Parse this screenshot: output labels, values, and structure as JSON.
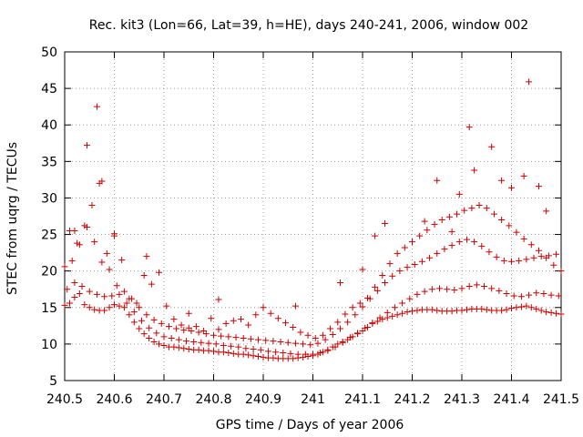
{
  "chart_data": {
    "type": "scatter",
    "title": "Rec. kit3 (Lon=66, Lat=39, h=HE), days 240-241, 2006, window 002",
    "xlabel": "GPS time / Days of year 2006",
    "ylabel": "STEC from uqrg / TECUs",
    "xlim": [
      240.5,
      241.5
    ],
    "ylim": [
      5,
      50
    ],
    "xticks": [
      240.5,
      240.6,
      240.7,
      240.8,
      240.9,
      241,
      241.1,
      241.2,
      241.3,
      241.4,
      241.5
    ],
    "xtick_labels": [
      "240.5",
      "240.6",
      "240.7",
      "240.8",
      "240.9",
      "241",
      "241.1",
      "241.2",
      "241.3",
      "241.4",
      "241.5"
    ],
    "yticks": [
      5,
      10,
      15,
      20,
      25,
      30,
      35,
      40,
      45,
      50
    ],
    "ytick_labels": [
      "5",
      "10",
      "15",
      "20",
      "25",
      "30",
      "35",
      "40",
      "45",
      "50"
    ],
    "grid": true,
    "marker": "+",
    "color": "#cc0000",
    "series": [
      {
        "x": [
          240.5,
          240.51,
          240.52,
          240.53,
          240.54,
          240.55,
          240.56,
          240.57,
          240.58,
          240.59,
          240.6,
          240.61,
          240.62,
          240.63,
          240.64,
          240.65,
          240.66,
          240.67,
          240.68,
          240.69,
          240.7,
          240.71,
          240.72,
          240.73,
          240.74,
          240.75,
          240.76,
          240.77,
          240.78,
          240.79,
          240.8,
          240.81,
          240.82,
          240.83,
          240.84,
          240.85,
          240.86,
          240.87,
          240.88,
          240.89,
          240.9,
          240.91,
          240.92,
          240.93,
          240.94,
          240.95,
          240.96,
          240.97,
          240.98,
          240.99,
          241.0,
          241.01,
          241.02,
          241.03,
          241.04,
          241.05,
          241.06,
          241.07,
          241.08,
          241.09,
          241.1,
          241.11,
          241.12,
          241.13,
          241.14,
          241.15,
          241.16,
          241.17,
          241.18,
          241.19,
          241.2,
          241.21,
          241.22,
          241.23,
          241.24,
          241.25,
          241.26,
          241.27,
          241.28,
          241.29,
          241.3,
          241.31,
          241.32,
          241.33,
          241.34,
          241.35,
          241.36,
          241.37,
          241.38,
          241.39,
          241.4,
          241.41,
          241.42,
          241.43,
          241.44,
          241.45,
          241.46,
          241.47,
          241.48,
          241.49,
          241.5
        ],
        "y": [
          15.3,
          15.6,
          16.4,
          16.9,
          15.4,
          15.0,
          14.7,
          14.6,
          14.6,
          15.0,
          15.4,
          15.2,
          15.0,
          14.0,
          13.0,
          12.1,
          11.4,
          10.8,
          10.3,
          10.0,
          9.8,
          9.6,
          9.6,
          9.5,
          9.4,
          9.3,
          9.2,
          9.2,
          9.1,
          9.1,
          9.0,
          8.9,
          8.9,
          8.8,
          8.7,
          8.6,
          8.6,
          8.5,
          8.4,
          8.3,
          8.2,
          8.1,
          8.1,
          8.0,
          8.0,
          8.0,
          8.0,
          8.1,
          8.2,
          8.3,
          8.4,
          8.6,
          8.9,
          9.2,
          9.6,
          10.0,
          10.3,
          10.6,
          11.0,
          11.4,
          11.8,
          12.3,
          12.8,
          13.1,
          13.4,
          13.6,
          13.8,
          14.0,
          14.2,
          14.4,
          14.5,
          14.6,
          14.7,
          14.7,
          14.7,
          14.6,
          14.5,
          14.5,
          14.5,
          14.6,
          14.6,
          14.7,
          14.8,
          14.8,
          14.8,
          14.7,
          14.6,
          14.6,
          14.6,
          14.7,
          14.9,
          15.0,
          15.1,
          15.2,
          15.0,
          14.8,
          14.6,
          14.4,
          14.3,
          14.2,
          14.1
        ]
      },
      {
        "x": [
          240.505,
          240.52,
          240.535,
          240.55,
          240.565,
          240.58,
          240.595,
          240.61,
          240.625,
          240.64,
          240.655,
          240.67,
          240.685,
          240.7,
          240.715,
          240.73,
          240.745,
          240.76,
          240.775,
          240.79,
          240.805,
          240.82,
          240.835,
          240.85,
          240.865,
          240.88,
          240.895,
          240.91,
          240.925,
          240.94,
          240.955,
          240.97,
          240.985,
          241.0,
          241.015,
          241.03,
          241.045,
          241.06,
          241.075,
          241.09,
          241.105,
          241.12,
          241.135,
          241.15,
          241.165,
          241.18,
          241.195,
          241.21,
          241.225,
          241.24,
          241.255,
          241.27,
          241.285,
          241.3,
          241.315,
          241.33,
          241.345,
          241.36,
          241.375,
          241.39,
          241.405,
          241.42,
          241.435,
          241.45,
          241.465,
          241.48,
          241.495
        ],
        "y": [
          17.5,
          18.4,
          17.9,
          17.2,
          16.8,
          16.5,
          16.6,
          16.8,
          15.6,
          14.4,
          13.2,
          12.2,
          11.5,
          11.0,
          10.8,
          10.6,
          10.4,
          10.3,
          10.2,
          10.1,
          10.0,
          9.8,
          9.7,
          9.6,
          9.4,
          9.3,
          9.2,
          9.0,
          8.9,
          8.8,
          8.7,
          8.6,
          8.6,
          8.6,
          8.8,
          9.1,
          9.6,
          10.2,
          10.9,
          11.5,
          12.2,
          12.9,
          13.6,
          14.3,
          15.0,
          15.6,
          16.2,
          16.8,
          17.2,
          17.5,
          17.6,
          17.5,
          17.4,
          17.6,
          17.9,
          18.1,
          17.9,
          17.6,
          17.3,
          16.9,
          16.6,
          16.5,
          16.7,
          17.0,
          16.9,
          16.7,
          16.6
        ]
      },
      {
        "x": [
          240.5,
          240.515,
          240.53,
          240.545,
          240.56,
          240.575,
          240.59,
          240.605,
          240.62,
          240.635,
          240.65,
          240.665,
          240.68,
          240.695,
          240.71,
          240.725,
          240.74,
          240.755,
          240.77,
          240.785,
          240.8,
          240.815,
          240.83,
          240.845,
          240.86,
          240.875,
          240.89,
          240.905,
          240.92,
          240.935,
          240.95,
          240.965,
          240.98,
          240.995,
          241.01,
          241.025,
          241.04,
          241.055,
          241.07,
          241.085,
          241.1,
          241.115,
          241.13,
          241.145,
          241.16,
          241.175,
          241.19,
          241.205,
          241.22,
          241.235,
          241.25,
          241.265,
          241.28,
          241.295,
          241.31,
          241.325,
          241.34,
          241.355,
          241.37,
          241.385,
          241.4,
          241.415,
          241.43,
          241.445,
          241.46,
          241.475,
          241.49
        ],
        "y": [
          20.6,
          21.4,
          23.6,
          26.0,
          24.0,
          21.2,
          20.2,
          18.0,
          17.2,
          16.2,
          15.0,
          14.0,
          13.3,
          12.8,
          12.4,
          12.1,
          11.9,
          11.8,
          11.6,
          11.4,
          11.2,
          11.1,
          11.0,
          10.9,
          10.8,
          10.7,
          10.6,
          10.5,
          10.4,
          10.3,
          10.2,
          10.1,
          10.0,
          9.9,
          10.1,
          10.6,
          11.3,
          12.1,
          13.0,
          14.0,
          15.1,
          16.2,
          17.3,
          18.4,
          19.3,
          20.0,
          20.5,
          20.9,
          21.3,
          21.8,
          22.4,
          23.0,
          23.5,
          24.0,
          24.3,
          24.0,
          23.4,
          22.6,
          21.9,
          21.4,
          21.3,
          21.4,
          21.6,
          21.8,
          22.0,
          22.1,
          22.3
        ]
      },
      {
        "x": [
          240.51,
          240.525,
          240.54,
          240.555,
          240.57,
          240.585,
          240.6,
          240.615,
          240.63,
          240.645,
          240.66,
          240.675,
          240.69,
          240.705,
          240.72,
          240.735,
          240.75,
          240.765,
          240.78,
          240.795,
          240.81,
          240.825,
          240.84,
          240.855,
          240.87,
          240.885,
          240.9,
          240.915,
          240.93,
          240.945,
          240.96,
          240.975,
          240.99,
          241.005,
          241.02,
          241.035,
          241.05,
          241.065,
          241.08,
          241.095,
          241.11,
          241.125,
          241.14,
          241.155,
          241.17,
          241.185,
          241.2,
          241.215,
          241.23,
          241.245,
          241.26,
          241.275,
          241.29,
          241.305,
          241.32,
          241.335,
          241.35,
          241.365,
          241.38,
          241.395,
          241.41,
          241.425,
          241.44,
          241.455,
          241.47,
          241.485,
          241.5
        ],
        "y": [
          25.5,
          23.8,
          26.2,
          29.0,
          32.0,
          22.4,
          24.8,
          21.5,
          16.2,
          15.6,
          19.4,
          18.2,
          19.8,
          15.2,
          13.4,
          12.6,
          12.2,
          12.4,
          11.8,
          13.5,
          12.0,
          12.8,
          13.2,
          13.4,
          12.6,
          14.0,
          15.0,
          14.2,
          13.5,
          12.9,
          12.3,
          11.6,
          11.2,
          10.8,
          11.2,
          12.1,
          13.0,
          14.1,
          15.0,
          15.6,
          16.3,
          17.8,
          19.4,
          21.0,
          22.4,
          23.2,
          24.0,
          24.8,
          25.6,
          26.4,
          27.0,
          27.4,
          27.8,
          28.3,
          28.6,
          29.0,
          28.6,
          27.8,
          27.0,
          26.2,
          25.3,
          24.4,
          23.6,
          22.8,
          21.8,
          20.8,
          20.0
        ]
      },
      {
        "x": [
          240.52,
          240.545,
          240.565,
          240.575,
          240.6,
          240.665,
          240.75,
          240.81,
          240.965,
          241.055,
          241.1,
          241.125,
          241.145,
          241.225,
          241.25,
          241.28,
          241.295,
          241.315,
          241.325,
          241.36,
          241.38,
          241.4,
          241.425,
          241.435,
          241.455,
          241.47
        ],
        "y": [
          25.5,
          37.2,
          42.5,
          32.3,
          25.1,
          22.0,
          14.2,
          16.1,
          15.2,
          18.4,
          20.2,
          24.8,
          26.5,
          26.8,
          32.4,
          25.4,
          30.5,
          39.7,
          33.8,
          37.0,
          32.4,
          31.4,
          33.0,
          45.9,
          31.6,
          28.2
        ]
      }
    ]
  }
}
